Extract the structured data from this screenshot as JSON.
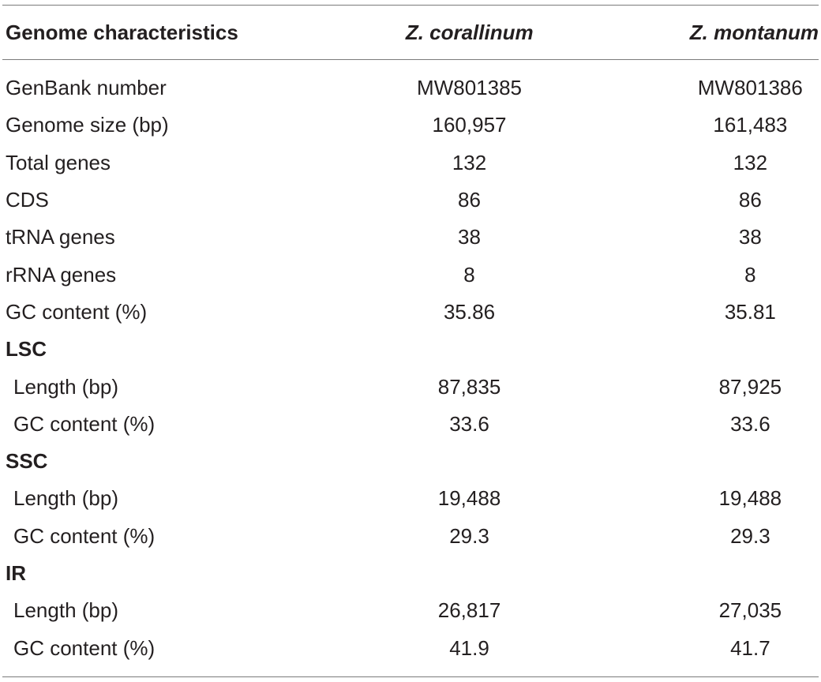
{
  "table": {
    "headers": [
      "Genome characteristics",
      "Z. corallinum",
      "Z. montanum"
    ],
    "rows": [
      {
        "label": "GenBank number",
        "v1": "MW801385",
        "v2": "MW801386",
        "kind": "plain"
      },
      {
        "label": "Genome size (bp)",
        "v1": "160,957",
        "v2": "161,483",
        "kind": "plain"
      },
      {
        "label": "Total genes",
        "v1": "132",
        "v2": "132",
        "kind": "plain"
      },
      {
        "label": "CDS",
        "v1": "86",
        "v2": "86",
        "kind": "plain"
      },
      {
        "label": "tRNA genes",
        "v1": "38",
        "v2": "38",
        "kind": "plain"
      },
      {
        "label": "rRNA genes",
        "v1": "8",
        "v2": "8",
        "kind": "plain"
      },
      {
        "label": "GC content (%)",
        "v1": "35.86",
        "v2": "35.81",
        "kind": "plain"
      },
      {
        "label": "LSC",
        "v1": "",
        "v2": "",
        "kind": "section"
      },
      {
        "label": "Length (bp)",
        "v1": "87,835",
        "v2": "87,925",
        "kind": "sub"
      },
      {
        "label": "GC content (%)",
        "v1": "33.6",
        "v2": "33.6",
        "kind": "sub"
      },
      {
        "label": "SSC",
        "v1": "",
        "v2": "",
        "kind": "section"
      },
      {
        "label": "Length (bp)",
        "v1": "19,488",
        "v2": "19,488",
        "kind": "sub"
      },
      {
        "label": "GC content (%)",
        "v1": "29.3",
        "v2": "29.3",
        "kind": "sub"
      },
      {
        "label": "IR",
        "v1": "",
        "v2": "",
        "kind": "section"
      },
      {
        "label": "Length (bp)",
        "v1": "26,817",
        "v2": "27,035",
        "kind": "sub"
      },
      {
        "label": "GC content (%)",
        "v1": "41.9",
        "v2": "41.7",
        "kind": "sub"
      }
    ]
  }
}
